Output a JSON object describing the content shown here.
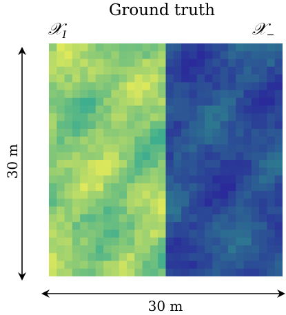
{
  "title": "Ground truth",
  "left_region": {
    "letter": "𝒳",
    "subscript": "I"
  },
  "right_region": {
    "letter": "𝒳",
    "subscript": "−"
  },
  "dimension_vertical": "30 m",
  "dimension_horizontal": "30 m",
  "colors": {
    "left_low": "#3fae8e",
    "left_high": "#dde85c",
    "right_low": "#2a2a9a",
    "right_high": "#2e8a8e"
  },
  "grid": {
    "columns": 30,
    "rows": 30
  }
}
